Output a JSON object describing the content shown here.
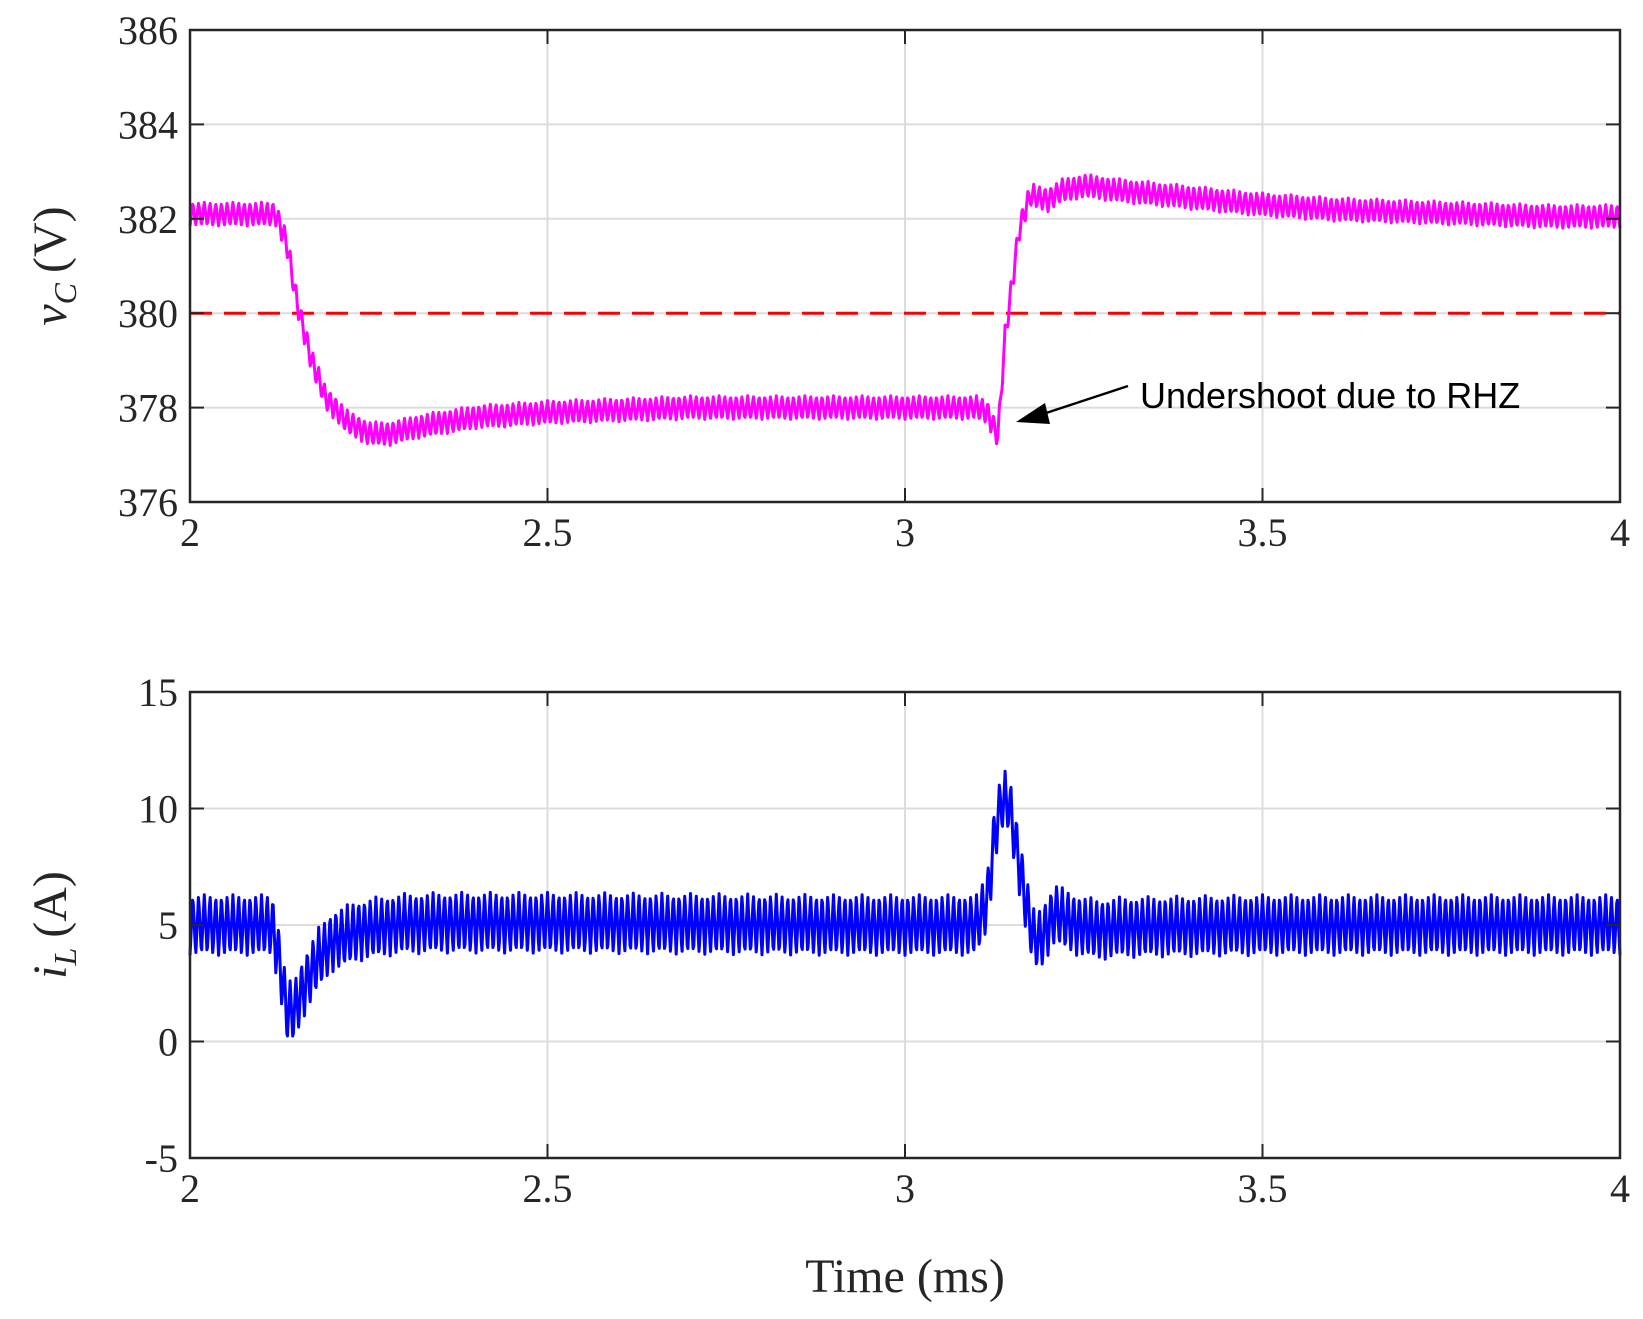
{
  "chart_data": [
    {
      "type": "line",
      "xlabel": "",
      "ylabel": "v_C (V)",
      "ylabel_parts": {
        "symbol": "v",
        "subscript": "C",
        "unit": "(V)"
      },
      "xlim": [
        2,
        4
      ],
      "ylim": [
        376,
        386
      ],
      "xticks": [
        2,
        2.5,
        3,
        3.5,
        4
      ],
      "xtick_labels": [
        "2",
        "2.5",
        "3",
        "3.5",
        "4"
      ],
      "yticks": [
        376,
        378,
        380,
        382,
        384,
        386
      ],
      "ytick_labels": [
        "376",
        "378",
        "380",
        "382",
        "384",
        "386"
      ],
      "grid": true,
      "reference_line": {
        "y": 380,
        "color": "#ff0000",
        "style": "dashed"
      },
      "annotation": {
        "text": "Undershoot due to RHZ",
        "x": 3.13,
        "y": 377.6
      },
      "series": [
        {
          "name": "v_C",
          "color": "#ff00ff",
          "ripple_amplitude": 0.25,
          "x": [
            2.0,
            2.12,
            2.135,
            2.15,
            2.17,
            2.19,
            2.22,
            2.25,
            2.28,
            2.32,
            2.4,
            2.5,
            2.6,
            2.7,
            2.8,
            2.9,
            3.0,
            3.05,
            3.1,
            3.115,
            3.13,
            3.14,
            3.16,
            3.175,
            3.2,
            3.22,
            3.25,
            3.3,
            3.4,
            3.5,
            3.6,
            3.7,
            3.8,
            3.9,
            4.0
          ],
          "values": [
            382.1,
            382.1,
            381.5,
            380.2,
            379.0,
            378.2,
            377.7,
            377.45,
            377.45,
            377.6,
            377.8,
            377.9,
            377.95,
            378.0,
            378.0,
            378.0,
            378.0,
            378.0,
            378.0,
            377.9,
            377.4,
            379.5,
            381.8,
            382.5,
            382.4,
            382.6,
            382.7,
            382.6,
            382.45,
            382.3,
            382.2,
            382.15,
            382.1,
            382.05,
            382.05
          ]
        }
      ]
    },
    {
      "type": "line",
      "xlabel": "Time (ms)",
      "ylabel": "i_L (A)",
      "ylabel_parts": {
        "symbol": "i",
        "subscript": "L",
        "unit": "(A)"
      },
      "xlim": [
        2,
        4
      ],
      "ylim": [
        -5,
        15
      ],
      "xticks": [
        2,
        2.5,
        3,
        3.5,
        4
      ],
      "xtick_labels": [
        "2",
        "2.5",
        "3",
        "3.5",
        "4"
      ],
      "yticks": [
        -5,
        0,
        5,
        10,
        15
      ],
      "ytick_labels": [
        "-5",
        "0",
        "5",
        "10",
        "15"
      ],
      "grid": true,
      "series": [
        {
          "name": "i_L",
          "color": "#0000ff",
          "ripple_amplitude": 1.3,
          "x": [
            2.0,
            2.115,
            2.125,
            2.135,
            2.145,
            2.16,
            2.18,
            2.2,
            2.23,
            2.26,
            2.3,
            2.35,
            2.5,
            2.7,
            2.9,
            3.0,
            3.1,
            3.115,
            3.125,
            3.135,
            3.145,
            3.155,
            3.17,
            3.18,
            3.19,
            3.2,
            3.21,
            3.22,
            3.24,
            3.27,
            3.3,
            3.5,
            3.7,
            3.9,
            4.0
          ],
          "values": [
            5.0,
            5.0,
            3.5,
            1.3,
            1.3,
            2.4,
            3.6,
            4.3,
            4.7,
            4.9,
            5.05,
            5.1,
            5.1,
            5.05,
            5.0,
            5.0,
            5.0,
            6.0,
            8.8,
            10.3,
            10.3,
            8.5,
            5.8,
            4.4,
            4.4,
            5.0,
            5.5,
            5.3,
            5.0,
            4.8,
            4.9,
            5.0,
            5.0,
            5.0,
            5.0
          ]
        }
      ]
    }
  ]
}
